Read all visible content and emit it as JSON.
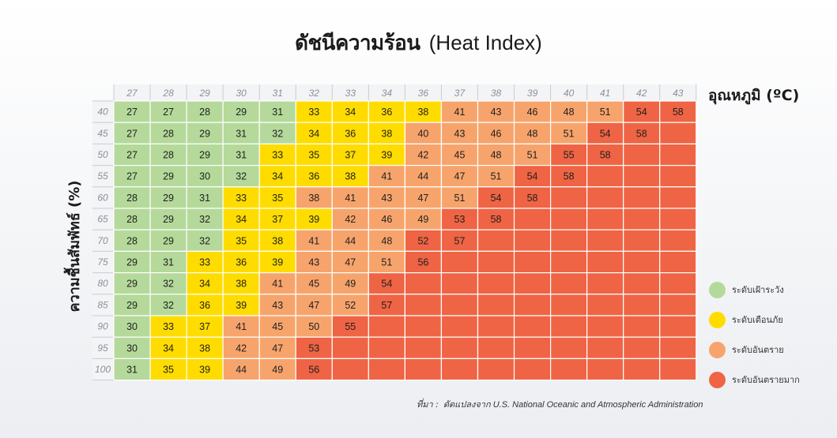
{
  "title": {
    "thai": "ดัชนีความร้อน",
    "english": "(Heat Index)"
  },
  "temperature_unit_label": "อุณหภูมิ (ºC)",
  "humidity_label": "ความชื้นสัมพัทธ์ (%)",
  "source": {
    "prefix": "ที่มา :",
    "text": "ดัดแปลงจาก U.S. National Oceanic and Atmospheric Administration"
  },
  "colors": {
    "green": "#b5d99a",
    "yellow": "#ffdc00",
    "orange": "#f7a46c",
    "red": "#ef6444",
    "tick": "#8a8f99",
    "divider": "#ffffff"
  },
  "legend": [
    {
      "label": "ระดับเฝ้าระวัง",
      "level": "green"
    },
    {
      "label": "ระดับเตือนภัย",
      "level": "yellow"
    },
    {
      "label": "ระดับอันตราย",
      "level": "orange"
    },
    {
      "label": "ระดับอันตรายมาก",
      "level": "red"
    }
  ],
  "chart_data": {
    "type": "heatmap",
    "title": "ดัชนีความร้อน (Heat Index)",
    "xlabel": "อุณหภูมิ (ºC)",
    "ylabel": "ความชื้นสัมพัทธ์ (%)",
    "x": [
      27,
      28,
      29,
      30,
      31,
      32,
      33,
      34,
      36,
      37,
      38,
      39,
      40,
      41,
      42,
      43
    ],
    "y": [
      40,
      45,
      50,
      55,
      60,
      65,
      70,
      75,
      80,
      85,
      90,
      95,
      100
    ],
    "values": [
      [
        27,
        27,
        28,
        29,
        31,
        33,
        34,
        36,
        38,
        41,
        43,
        46,
        48,
        51,
        54,
        58
      ],
      [
        27,
        28,
        29,
        31,
        32,
        34,
        36,
        38,
        40,
        43,
        46,
        48,
        51,
        54,
        58,
        null
      ],
      [
        27,
        28,
        29,
        31,
        33,
        35,
        37,
        39,
        42,
        45,
        48,
        51,
        55,
        58,
        null,
        null
      ],
      [
        27,
        29,
        30,
        32,
        34,
        36,
        38,
        41,
        44,
        47,
        51,
        54,
        58,
        null,
        null,
        null
      ],
      [
        28,
        29,
        31,
        33,
        35,
        38,
        41,
        43,
        47,
        51,
        54,
        58,
        null,
        null,
        null,
        null
      ],
      [
        28,
        29,
        32,
        34,
        37,
        39,
        42,
        46,
        49,
        53,
        58,
        null,
        null,
        null,
        null,
        null
      ],
      [
        28,
        29,
        32,
        35,
        38,
        41,
        44,
        48,
        52,
        57,
        null,
        null,
        null,
        null,
        null,
        null
      ],
      [
        29,
        31,
        33,
        36,
        39,
        43,
        47,
        51,
        56,
        null,
        null,
        null,
        null,
        null,
        null,
        null
      ],
      [
        29,
        32,
        34,
        38,
        41,
        45,
        49,
        54,
        null,
        null,
        null,
        null,
        null,
        null,
        null,
        null
      ],
      [
        29,
        32,
        36,
        39,
        43,
        47,
        52,
        57,
        null,
        null,
        null,
        null,
        null,
        null,
        null,
        null
      ],
      [
        30,
        33,
        37,
        41,
        45,
        50,
        55,
        null,
        null,
        null,
        null,
        null,
        null,
        null,
        null,
        null
      ],
      [
        30,
        34,
        38,
        42,
        47,
        53,
        null,
        null,
        null,
        null,
        null,
        null,
        null,
        null,
        null,
        null
      ],
      [
        31,
        35,
        39,
        44,
        49,
        56,
        null,
        null,
        null,
        null,
        null,
        null,
        null,
        null,
        null,
        null
      ]
    ],
    "levels": [
      "GGGGGYYYYOOOOORR",
      "GGGGGYYYOOOOORRR",
      "GGGGYYYYOOOORRRR",
      "GGGGYYYOOOORRRRR",
      "GGGYYOOOOORRRRRR",
      "GGGYYYOOORRRRRRR",
      "GGGYYOOORRRRRRRR",
      "GGYYYOOORRRRRRRR",
      "GGYYOOORRRRRRRRR",
      "GGYYOOORRRRRRRRR",
      "GYYOOORRRRRRRRRR",
      "GYYOORRRRRRRRRRR",
      "GYYOORRRRRRRRRRR"
    ],
    "level_names": {
      "G": "ระดับเฝ้าระวัง",
      "Y": "ระดับเตือนภัย",
      "O": "ระดับอันตราย",
      "R": "ระดับอันตรายมาก"
    },
    "grid": true,
    "legend_position": "right"
  }
}
